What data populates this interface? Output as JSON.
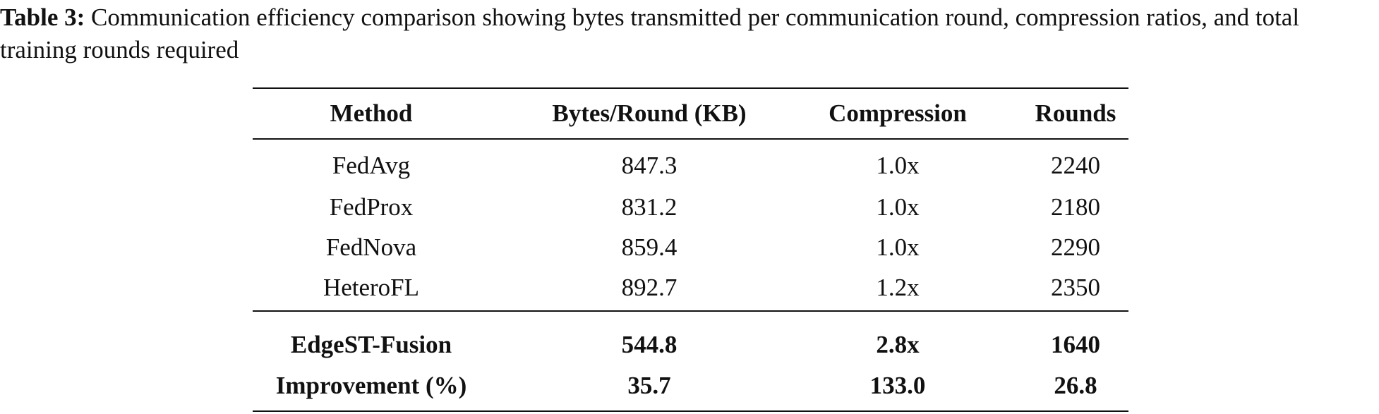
{
  "caption": {
    "label": "Table 3:",
    "text": "Communication efficiency comparison showing bytes transmitted per communication round, compression ratios, and total training rounds required"
  },
  "table": {
    "header": [
      "Method",
      "Bytes/Round (KB)",
      "Compression",
      "Rounds"
    ],
    "rows": [
      [
        "FedAvg",
        "847.3",
        "1.0x",
        "2240"
      ],
      [
        "FedProx",
        "831.2",
        "1.0x",
        "2180"
      ],
      [
        "FedNova",
        "859.4",
        "1.0x",
        "2290"
      ],
      [
        "HeteroFL",
        "892.7",
        "1.2x",
        "2350"
      ]
    ],
    "bold_rows": [
      [
        "EdgeST-Fusion",
        "544.8",
        "2.8x",
        "1640"
      ],
      [
        "Improvement (%)",
        "35.7",
        "133.0",
        "26.8"
      ]
    ]
  }
}
